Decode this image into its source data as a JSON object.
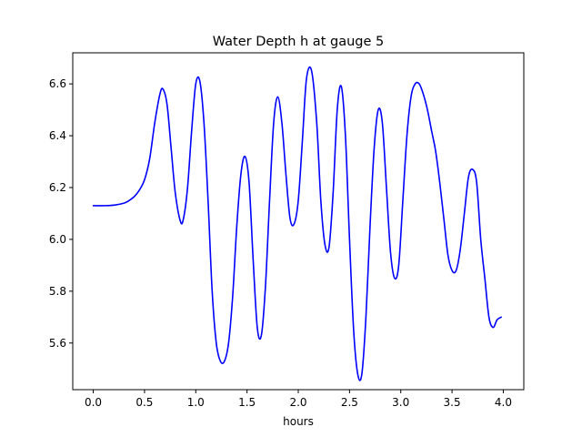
{
  "chart_data": {
    "type": "line",
    "title": "Water Depth h at gauge 5",
    "xlabel": "hours",
    "ylabel": "",
    "xlim": [
      -0.2,
      4.2
    ],
    "ylim": [
      5.42,
      6.72
    ],
    "xticks": [
      0.0,
      0.5,
      1.0,
      1.5,
      2.0,
      2.5,
      3.0,
      3.5,
      4.0
    ],
    "xtick_labels": [
      "0.0",
      "0.5",
      "1.0",
      "1.5",
      "2.0",
      "2.5",
      "3.0",
      "3.5",
      "4.0"
    ],
    "yticks": [
      5.6,
      5.8,
      6.0,
      6.2,
      6.4,
      6.6
    ],
    "ytick_labels": [
      "5.6",
      "5.8",
      "6.0",
      "6.2",
      "6.4",
      "6.6"
    ],
    "grid": false,
    "series": [
      {
        "color": "#0000ff",
        "x": [
          0.0,
          0.1,
          0.2,
          0.3,
          0.35,
          0.4,
          0.45,
          0.5,
          0.55,
          0.6,
          0.65,
          0.68,
          0.72,
          0.76,
          0.8,
          0.85,
          0.88,
          0.92,
          0.96,
          1.0,
          1.04,
          1.08,
          1.12,
          1.16,
          1.2,
          1.24,
          1.28,
          1.32,
          1.36,
          1.4,
          1.44,
          1.48,
          1.52,
          1.56,
          1.6,
          1.64,
          1.68,
          1.72,
          1.76,
          1.8,
          1.84,
          1.88,
          1.92,
          1.96,
          2.0,
          2.04,
          2.08,
          2.13,
          2.18,
          2.22,
          2.26,
          2.3,
          2.34,
          2.38,
          2.42,
          2.46,
          2.5,
          2.54,
          2.58,
          2.62,
          2.66,
          2.7,
          2.74,
          2.78,
          2.82,
          2.86,
          2.9,
          2.94,
          2.98,
          3.02,
          3.06,
          3.1,
          3.14,
          3.18,
          3.22,
          3.26,
          3.3,
          3.34,
          3.38,
          3.42,
          3.46,
          3.5,
          3.54,
          3.58,
          3.62,
          3.66,
          3.7,
          3.74,
          3.78,
          3.82,
          3.86,
          3.9,
          3.94,
          3.98
        ],
        "y": [
          6.13,
          6.13,
          6.132,
          6.14,
          6.15,
          6.165,
          6.19,
          6.23,
          6.31,
          6.45,
          6.56,
          6.58,
          6.52,
          6.35,
          6.18,
          6.07,
          6.08,
          6.2,
          6.42,
          6.6,
          6.61,
          6.45,
          6.15,
          5.8,
          5.6,
          5.53,
          5.53,
          5.6,
          5.78,
          6.05,
          6.25,
          6.32,
          6.22,
          5.92,
          5.66,
          5.63,
          5.82,
          6.15,
          6.45,
          6.55,
          6.45,
          6.25,
          6.08,
          6.06,
          6.15,
          6.38,
          6.62,
          6.65,
          6.45,
          6.15,
          5.98,
          5.97,
          6.18,
          6.5,
          6.59,
          6.4,
          6.0,
          5.65,
          5.48,
          5.48,
          5.7,
          6.05,
          6.35,
          6.5,
          6.45,
          6.2,
          5.95,
          5.85,
          5.9,
          6.15,
          6.4,
          6.55,
          6.6,
          6.6,
          6.56,
          6.5,
          6.42,
          6.34,
          6.22,
          6.08,
          5.94,
          5.88,
          5.88,
          5.96,
          6.1,
          6.24,
          6.27,
          6.22,
          6.0,
          5.85,
          5.7,
          5.66,
          5.69,
          5.7
        ]
      }
    ]
  }
}
